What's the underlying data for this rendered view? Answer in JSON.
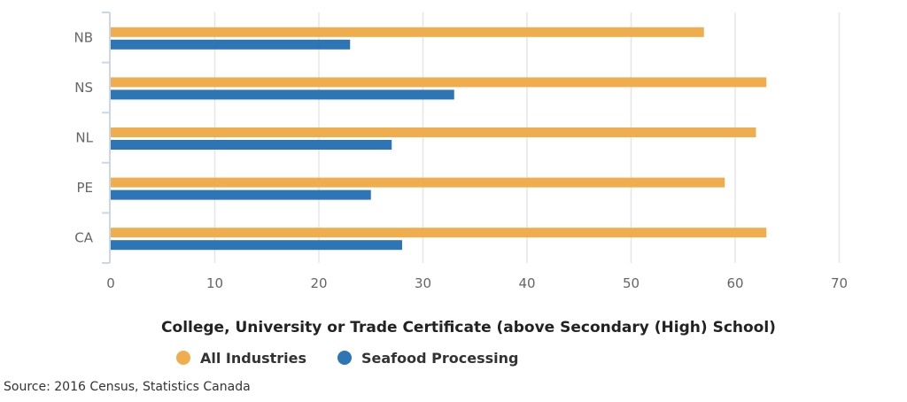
{
  "chart_data": {
    "type": "bar",
    "orientation": "horizontal",
    "categories": [
      "NB",
      "NS",
      "NL",
      "PE",
      "CA"
    ],
    "series": [
      {
        "name": "All Industries",
        "values": [
          57,
          63,
          62,
          59,
          63
        ]
      },
      {
        "name": "Seafood Processing",
        "values": [
          23,
          33,
          27,
          25,
          28
        ]
      }
    ],
    "xticks": [
      "0",
      "10",
      "20",
      "30",
      "40",
      "50",
      "60",
      "70"
    ],
    "xlim": [
      0,
      70
    ],
    "xlabel": "College, University or Trade Certificate (above Secondary (High) School)",
    "legend_position": "bottom",
    "grid": "vertical"
  },
  "colors": {
    "All Industries": "#f0ad4e",
    "Seafood Processing": "#2e75b6",
    "grid": "#e6e6e6",
    "axis": "#ccd6eb"
  },
  "source": "Source: 2016 Census, Statistics Canada"
}
